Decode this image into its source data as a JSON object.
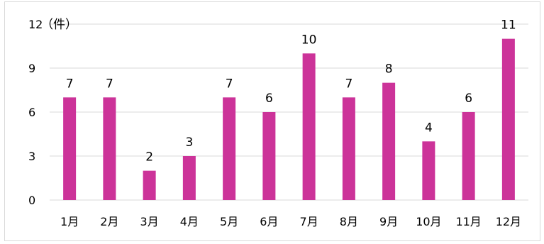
{
  "chart_data": {
    "type": "bar",
    "categories": [
      "1月",
      "2月",
      "3月",
      "4月",
      "5月",
      "6月",
      "7月",
      "8月",
      "9月",
      "10月",
      "11月",
      "12月"
    ],
    "values": [
      7,
      7,
      2,
      3,
      7,
      6,
      10,
      7,
      8,
      4,
      6,
      11
    ],
    "yticks": [
      0,
      3,
      6,
      9,
      12
    ],
    "ylim": [
      0,
      12
    ],
    "unit_label": "（件）",
    "grid": true,
    "data_labels": true,
    "bar_color": "#cc3399",
    "grid_color": "#d9d9d9"
  }
}
